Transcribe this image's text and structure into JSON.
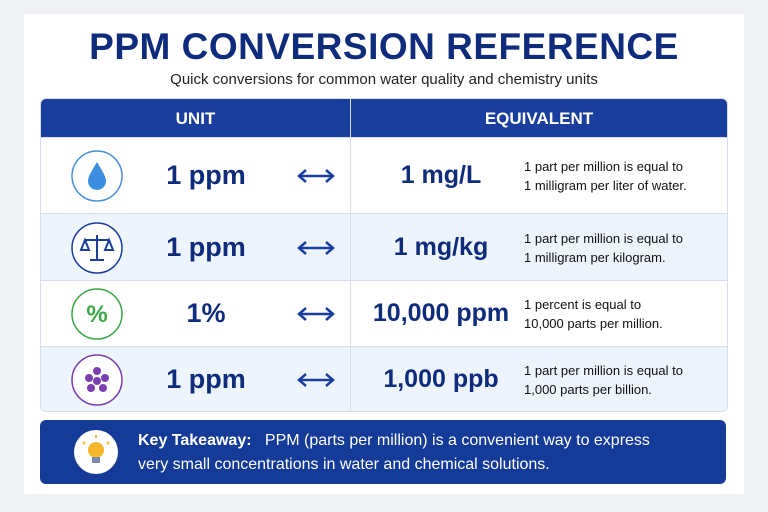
{
  "header": {
    "title": "PPM CONVERSION REFERENCE",
    "subtitle": "Quick conversions for common water quality and chemistry units"
  },
  "table": {
    "headers": [
      "UNIT",
      "EQUIVALENT"
    ],
    "rows": [
      {
        "unit": "1 ppm",
        "equivalent": "1 mg/L",
        "description": [
          "1 part per million is equal to",
          "1 milligram per liter of water."
        ]
      },
      {
        "unit": "1 ppm",
        "equivalent": "1 mg/kg",
        "description": [
          "1 part per million is equal to",
          "1 milligram per kilogram."
        ]
      },
      {
        "icon": "%",
        "unit": "1%",
        "equivalent": "10,000 ppm",
        "description": [
          "1 percent is equal to",
          "10,000 parts per million."
        ]
      },
      {
        "unit": "1 ppm",
        "equivalent": "1,000 ppb",
        "description": [
          "1 part per million is equal to",
          "1,000 parts per billion."
        ]
      }
    ]
  },
  "takeaway": {
    "label": "Key Takeaway:",
    "text": [
      "PPM (parts per million) is a convenient way to express",
      "very small concentrations in water and chemical solutions."
    ]
  }
}
